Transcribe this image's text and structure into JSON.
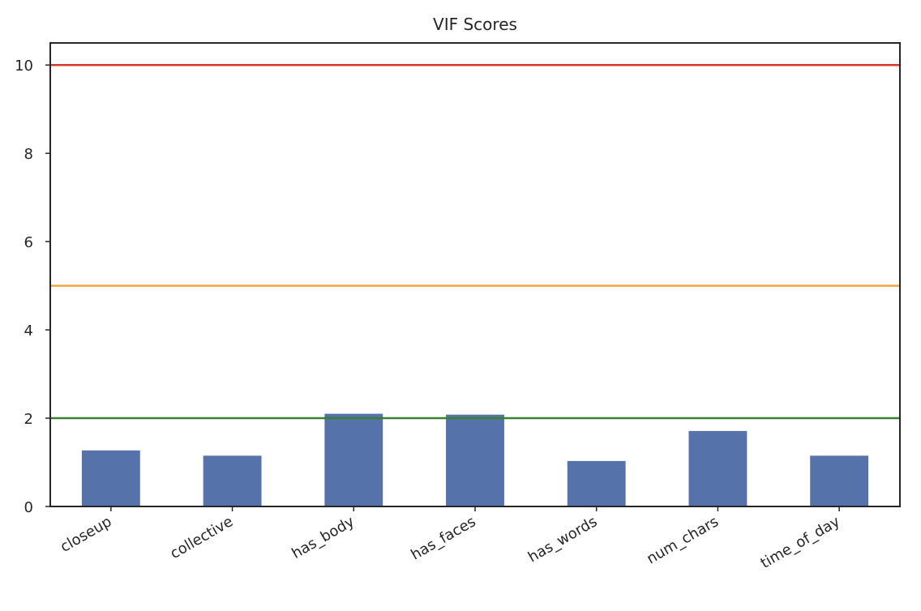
{
  "chart_data": {
    "type": "bar",
    "title": "VIF Scores",
    "xlabel": "",
    "ylabel": "",
    "categories": [
      "closeup",
      "collective",
      "has_body",
      "has_faces",
      "has_words",
      "num_chars",
      "time_of_day"
    ],
    "values": [
      1.27,
      1.15,
      2.1,
      2.08,
      1.03,
      1.71,
      1.15
    ],
    "ylim": [
      0,
      10.5
    ],
    "yticks": [
      0,
      2,
      4,
      6,
      8,
      10
    ],
    "grid": false,
    "bar_color": "#5572ab",
    "reference_lines": [
      {
        "value": 10,
        "color": "#d63a2a"
      },
      {
        "value": 5,
        "color": "#f0a43c"
      },
      {
        "value": 2,
        "color": "#3b7f32"
      }
    ]
  }
}
